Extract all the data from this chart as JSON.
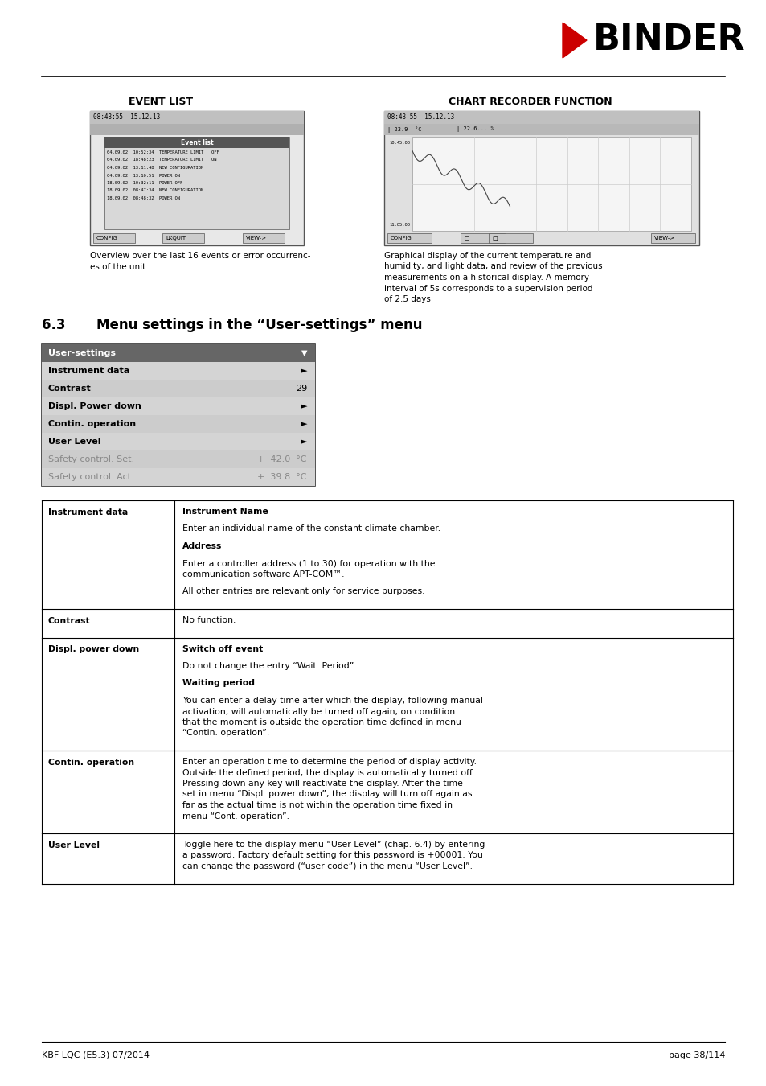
{
  "page_width": 9.54,
  "page_height": 13.5,
  "bg": "#ffffff",
  "logo_text": "BINDER",
  "footer_left": "KBF LQC (E5.3) 07/2014",
  "footer_right": "page 38/114",
  "section_title_num": "6.3",
  "section_title_text": "Menu settings in the “User-settings” menu",
  "col1_title": "EVENT LIST",
  "col2_title": "CHART RECORDER FUNCTION",
  "event_list_desc1": "Overview over the last 16 events or error occurrenc-",
  "event_list_desc2": "es of the unit.",
  "chart_rec_desc": "Graphical display of the current temperature and humidity, and light data, and review of the previous measurements on a historical display. A memory interval of 5s corresponds to a supervision period of 2.5 days",
  "menu_rows": [
    {
      "label": "Instrument data",
      "value": "►",
      "bold": true,
      "gray": false
    },
    {
      "label": "Contrast",
      "value": "29",
      "bold": true,
      "gray": false
    },
    {
      "label": "Displ. Power down",
      "value": "►",
      "bold": true,
      "gray": false
    },
    {
      "label": "Contin. operation",
      "value": "►",
      "bold": true,
      "gray": false
    },
    {
      "label": "User Level",
      "value": "►",
      "bold": true,
      "gray": false
    },
    {
      "label": "Safety control. Set.",
      "value": "+  42.0  °C",
      "bold": false,
      "gray": true
    },
    {
      "label": "Safety control. Act",
      "value": "+  39.8  °C",
      "bold": false,
      "gray": true
    }
  ],
  "table_rows": [
    {
      "col1": "Instrument data",
      "col1_bold": true,
      "col2": [
        {
          "text": "Instrument Name",
          "bold": true
        },
        {
          "text": "Enter an individual name of the constant climate chamber.",
          "bold": false
        },
        {
          "text": "Address",
          "bold": true
        },
        {
          "text": "Enter a controller address (1 to 30) for operation with the communication software APT-COM™.",
          "bold": false
        },
        {
          "text": "All other entries are relevant only for service purposes.",
          "bold": false
        }
      ]
    },
    {
      "col1": "Contrast",
      "col1_bold": true,
      "col2": [
        {
          "text": "No function.",
          "bold": false
        }
      ]
    },
    {
      "col1": "Displ. power down",
      "col1_bold": true,
      "col2": [
        {
          "text": "Switch off event",
          "bold": true
        },
        {
          "text": "Do not change the entry “Wait. Period”.",
          "bold": false
        },
        {
          "text": "Waiting period",
          "bold": true
        },
        {
          "text": "You can enter a delay time after which the display, following manual activation, will automatically be turned off again, on condition that the moment is outside the operation time defined in menu “Contin. operation”.",
          "bold": false
        }
      ]
    },
    {
      "col1": "Contin. operation",
      "col1_bold": true,
      "col2": [
        {
          "text": "Enter an operation time to determine the period of display activity. Outside the defined period, the display is automatically turned off. Pressing down any key will reactivate the display. After the time set in menu “Displ. power down”, the display will turn off again as far as the actual time is not within the operation time fixed in menu “Cont. operation”.",
          "bold": false
        }
      ]
    },
    {
      "col1": "User Level",
      "col1_bold": true,
      "col2": [
        {
          "text": "Toggle here to the display menu “User Level” (chap. 6.4) by entering a password. Factory default setting for this password is +00001. You can change the password (“user code”) in the menu “User Level”.",
          "bold": false
        }
      ]
    }
  ]
}
